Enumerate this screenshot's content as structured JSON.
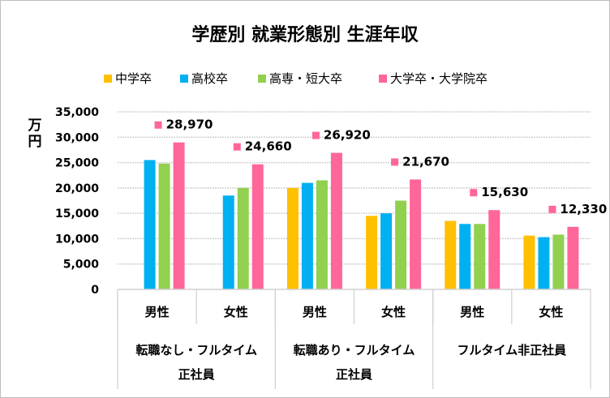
{
  "chart_data": {
    "type": "bar",
    "title": "学歴別 就業形態別 生涯年収",
    "ylabel": "万円",
    "ylim": [
      0,
      35000
    ],
    "yticks": [
      0,
      5000,
      10000,
      15000,
      20000,
      25000,
      30000,
      35000
    ],
    "ytick_labels": [
      "0",
      "5,000",
      "10,000",
      "15,000",
      "20,000",
      "25,000",
      "30,000",
      "35,000"
    ],
    "grid": true,
    "legend_position": "top",
    "categories": [
      "男性",
      "女性",
      "男性",
      "女性",
      "男性",
      "女性"
    ],
    "groups": [
      {
        "label_lines": [
          "転職なし・フルタイム",
          "正社員"
        ]
      },
      {
        "label_lines": [
          "転職あり・フルタイム",
          "正社員"
        ]
      },
      {
        "label_lines": [
          "フルタイム非正社員"
        ]
      }
    ],
    "series": [
      {
        "name": "中学卒",
        "color": "#FFC000",
        "values": [
          null,
          null,
          20000,
          14500,
          13500,
          10600
        ]
      },
      {
        "name": "高校卒",
        "color": "#00B0F0",
        "values": [
          25500,
          18500,
          21000,
          15000,
          12900,
          10300
        ]
      },
      {
        "name": "高専・短大卒",
        "color": "#92D050",
        "values": [
          24800,
          20000,
          21500,
          17500,
          12900,
          10800
        ]
      },
      {
        "name": "大学卒・大学院卒",
        "color": "#FF6699",
        "values": [
          28970,
          24660,
          26920,
          21670,
          15630,
          12330
        ],
        "data_labels": [
          "28,970",
          "24,660",
          "26,920",
          "21,670",
          "15,630",
          "12,330"
        ]
      }
    ]
  }
}
